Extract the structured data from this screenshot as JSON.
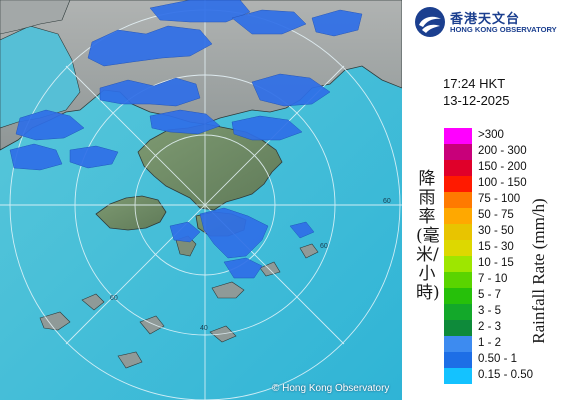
{
  "logo": {
    "name_cn": "香港天文台",
    "name_en": "HONG KONG OBSERVATORY",
    "icon": "observatory-logo-icon",
    "color": "#1b3f8f"
  },
  "timestamp": {
    "time": "17:24 HKT",
    "date": "13-12-2025"
  },
  "legend": {
    "title_cn": "降雨率(毫米/小時)",
    "title_en": "Rainfall Rate (mm/h)",
    "items": [
      {
        "label": ">300",
        "color": "#ff00ff"
      },
      {
        "label": "200 - 300",
        "color": "#c8007a"
      },
      {
        "label": "150 - 200",
        "color": "#e0002a"
      },
      {
        "label": "100 - 150",
        "color": "#ff1a00"
      },
      {
        "label": "75 - 100",
        "color": "#ff7a00"
      },
      {
        "label": "50 - 75",
        "color": "#ffa800"
      },
      {
        "label": "30 - 50",
        "color": "#e8c400"
      },
      {
        "label": "15 - 30",
        "color": "#ddd800"
      },
      {
        "label": "10 - 15",
        "color": "#9ee600"
      },
      {
        "label": "7 - 10",
        "color": "#5ad400"
      },
      {
        "label": "5 - 7",
        "color": "#26c00a"
      },
      {
        "label": "3 - 5",
        "color": "#13a82a"
      },
      {
        "label": "2 - 3",
        "color": "#0e8a3a"
      },
      {
        "label": "1 - 2",
        "color": "#3d8bf0"
      },
      {
        "label": "0.50 - 1",
        "color": "#1d6ee6"
      },
      {
        "label": "0.15 - 0.50",
        "color": "#14c2ff"
      }
    ]
  },
  "map": {
    "range_labels": [
      "60",
      "60",
      "60",
      "40"
    ],
    "copyright": "© Hong Kong Observatory",
    "sea_color": "#3fbfd8",
    "land_color": "#9aa0a2",
    "rain_color": "#2f6fe8"
  }
}
